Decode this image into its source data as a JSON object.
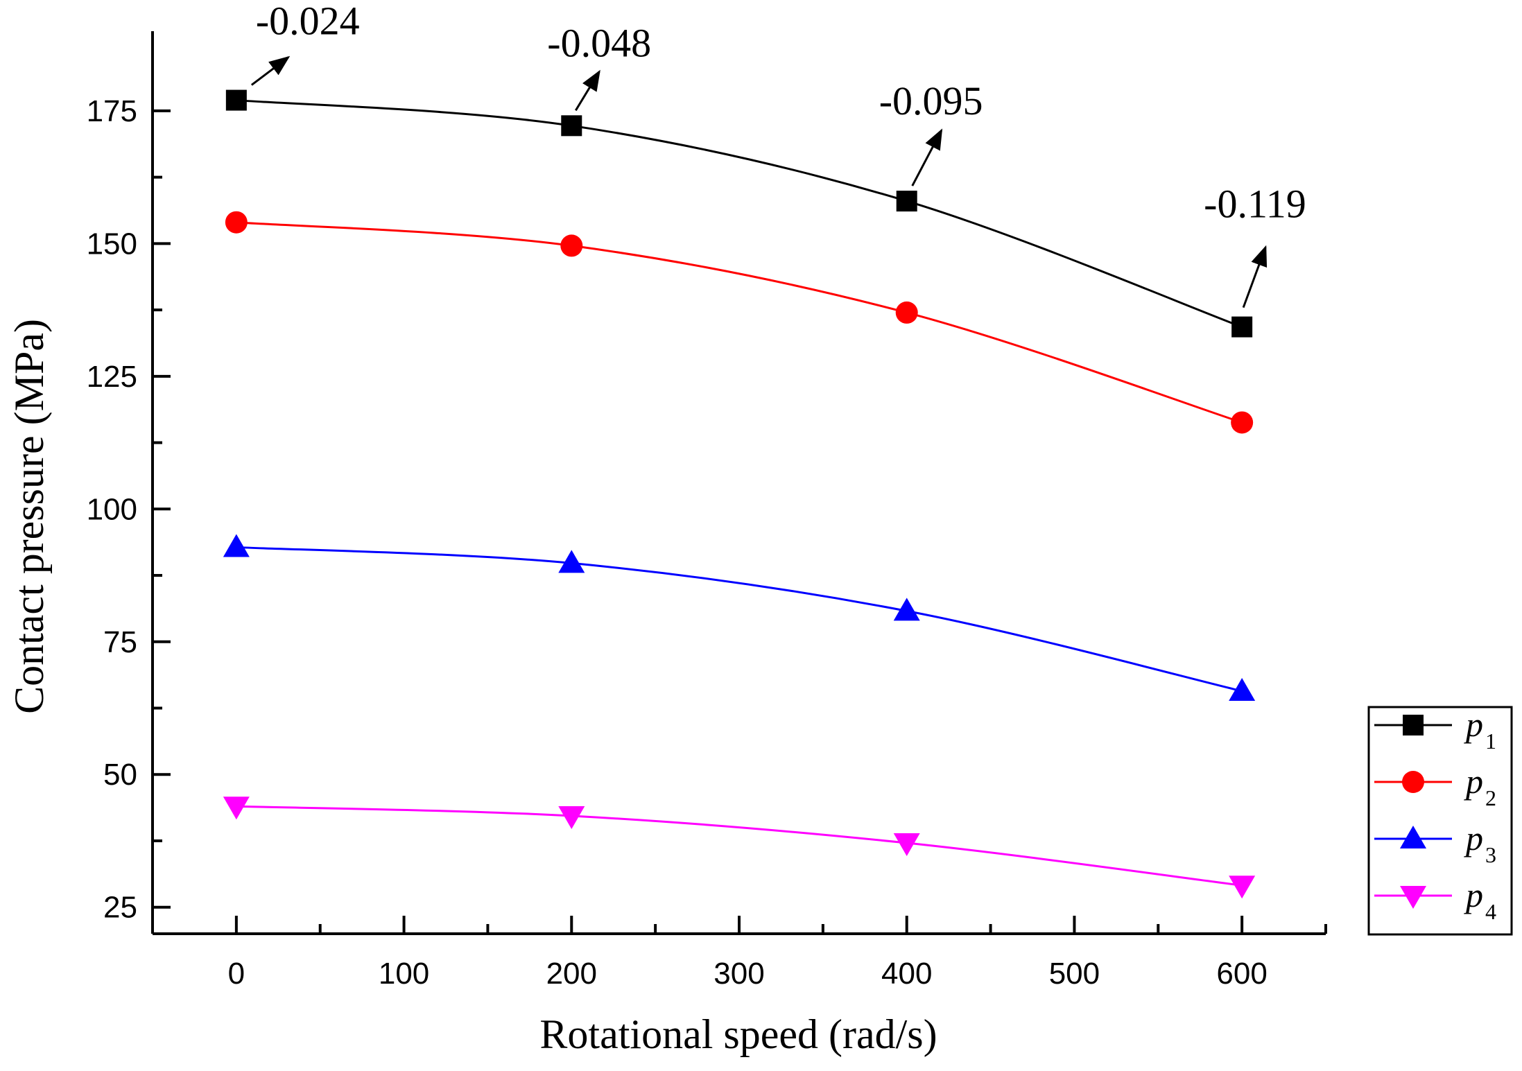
{
  "chart_data": {
    "type": "line",
    "title": "",
    "xlabel": "Rotational speed (rad/s)",
    "ylabel": "Contact pressure (MPa)",
    "xlim": [
      -50,
      650
    ],
    "ylim": [
      20,
      190
    ],
    "x_ticks": [
      0,
      100,
      200,
      300,
      400,
      500,
      600
    ],
    "y_ticks": [
      25,
      50,
      75,
      100,
      125,
      150,
      175
    ],
    "x": [
      0,
      200,
      400,
      600
    ],
    "series": [
      {
        "name": "p1",
        "symbol": "p",
        "sub": "1",
        "color": "#000000",
        "marker": "square",
        "values": [
          177,
          172.2,
          158,
          134.3
        ]
      },
      {
        "name": "p2",
        "symbol": "p",
        "sub": "2",
        "color": "#ff0000",
        "marker": "circle",
        "values": [
          154,
          149.6,
          137,
          116.3
        ]
      },
      {
        "name": "p3",
        "symbol": "p",
        "sub": "3",
        "color": "#0000ff",
        "marker": "triangle-up",
        "values": [
          92.8,
          89.8,
          80.8,
          65.7
        ]
      },
      {
        "name": "p4",
        "symbol": "p",
        "sub": "4",
        "color": "#ff00ff",
        "marker": "triangle-down",
        "values": [
          44,
          42.2,
          37.1,
          29.1
        ]
      }
    ],
    "annotations": [
      {
        "text": "-0.024",
        "x": 0,
        "y": 177
      },
      {
        "text": "-0.048",
        "x": 200,
        "y": 172.2
      },
      {
        "text": "-0.095",
        "x": 400,
        "y": 158
      },
      {
        "text": "-0.119",
        "x": 600,
        "y": 134.3
      }
    ],
    "legend_position": "bottom-right outside",
    "grid": false
  }
}
